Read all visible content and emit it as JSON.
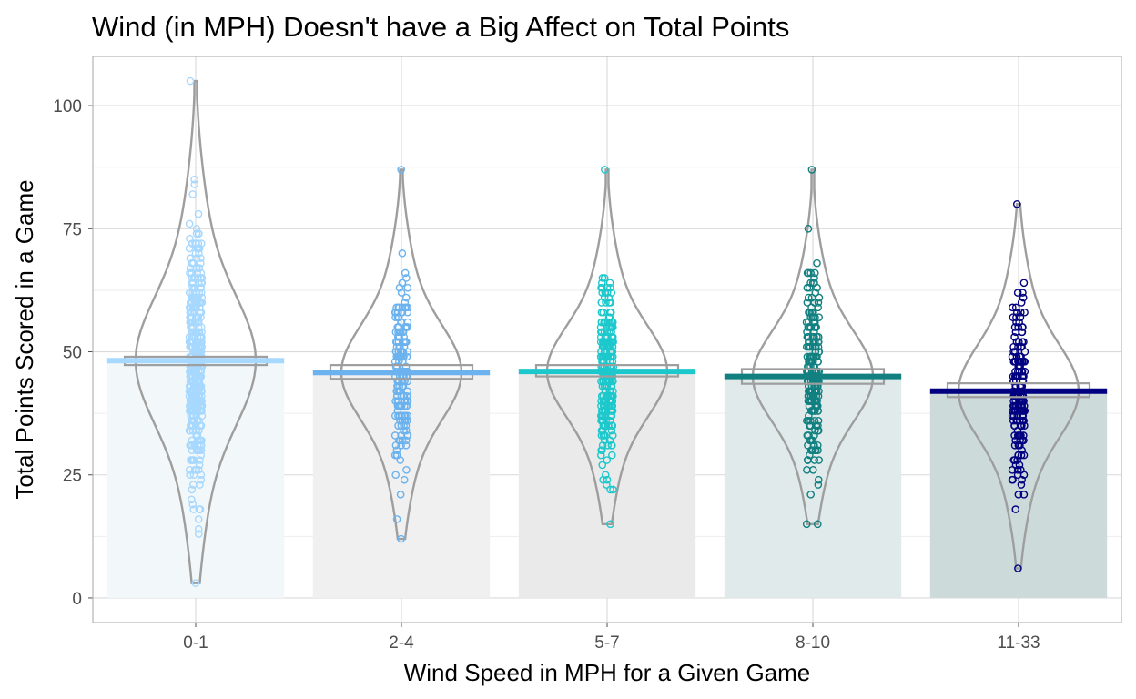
{
  "chart_data": {
    "type": "violin",
    "title": "Wind (in MPH) Doesn't have a Big Affect on Total Points",
    "xlabel": "Wind Speed in MPH for a Given Game",
    "ylabel": "Total Points Scored in a Game",
    "categories": [
      "0-1",
      "2-4",
      "5-7",
      "8-10",
      "11-33"
    ],
    "y_ticks": [
      0,
      25,
      50,
      75,
      100
    ],
    "y_tick_labels": [
      "0",
      "25",
      "50",
      "75",
      "100"
    ],
    "ylim": [
      -5,
      110
    ],
    "grid": true,
    "means": [
      48.2,
      45.8,
      46.0,
      45.0,
      42.0
    ],
    "mean_ci": [
      [
        47.3,
        49.0
      ],
      [
        44.5,
        47.3
      ],
      [
        45.0,
        47.3
      ],
      [
        43.5,
        46.5
      ],
      [
        40.8,
        43.6
      ]
    ],
    "ranges": [
      [
        3,
        105
      ],
      [
        12,
        87
      ],
      [
        15,
        87
      ],
      [
        15,
        87
      ],
      [
        6,
        80
      ]
    ],
    "n_points": [
      520,
      210,
      260,
      240,
      200
    ],
    "colors": [
      "#A7D8FF",
      "#6BB2EE",
      "#1CC8CC",
      "#128080",
      "#000080"
    ],
    "bar_fills": [
      "#F2F8F9",
      "#F0F0F0",
      "#EAEAEA",
      "#E0EAEA",
      "#CCDADA"
    ]
  }
}
